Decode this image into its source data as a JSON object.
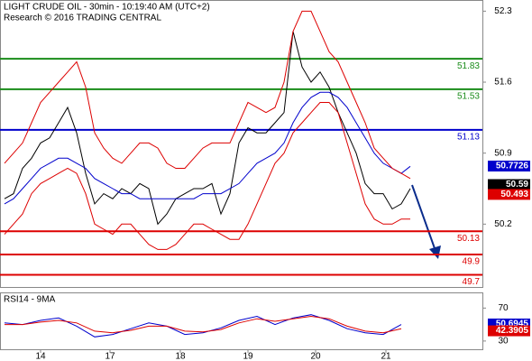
{
  "chart_data": [
    {
      "type": "line",
      "title": "LIGHT CRUDE OIL - 30min - 10:19:40 AM (UTC+2)",
      "subtitle": "Research © 2016 TRADING CENTRAL",
      "x": [
        0,
        2,
        4,
        6,
        8,
        10,
        12,
        14,
        16,
        18,
        20,
        22,
        24,
        26,
        28,
        30,
        32,
        34,
        36,
        38,
        40,
        42,
        44,
        46,
        48,
        50,
        52,
        54,
        56,
        58,
        60,
        62,
        64,
        66,
        68,
        70,
        72,
        74,
        76,
        78,
        80,
        82,
        84,
        86,
        88,
        90
      ],
      "xlim": [
        -1,
        106
      ],
      "xticks": [
        {
          "value": 8,
          "label": "14"
        },
        {
          "value": 23.4,
          "label": "17"
        },
        {
          "value": 39,
          "label": "18"
        },
        {
          "value": 54,
          "label": "19"
        },
        {
          "value": 69,
          "label": "20"
        },
        {
          "value": 84.6,
          "label": "21"
        }
      ],
      "ylim": [
        49.58,
        52.41
      ],
      "yticks": [
        52.3,
        51.6,
        50.9,
        50.2
      ],
      "series": [
        {
          "color": "#000000",
          "values": [
            50.45,
            50.5,
            50.75,
            50.85,
            51.0,
            51.05,
            51.2,
            51.35,
            51.1,
            50.7,
            50.4,
            50.5,
            50.45,
            50.55,
            50.5,
            50.6,
            50.55,
            50.2,
            50.3,
            50.45,
            50.5,
            50.55,
            50.55,
            50.6,
            50.3,
            50.5,
            51.0,
            51.15,
            51.1,
            51.1,
            51.2,
            51.3,
            52.1,
            51.75,
            51.6,
            51.7,
            51.55,
            51.3,
            51.1,
            50.9,
            50.6,
            50.5,
            50.5,
            50.35,
            50.4,
            50.55
          ]
        },
        {
          "color": "#0000cc",
          "values": [
            50.4,
            50.45,
            50.55,
            50.65,
            50.75,
            50.8,
            50.85,
            50.85,
            50.8,
            50.75,
            50.65,
            50.6,
            50.55,
            50.5,
            50.5,
            50.45,
            50.45,
            50.45,
            50.45,
            50.45,
            50.45,
            50.45,
            50.5,
            50.5,
            50.5,
            50.55,
            50.6,
            50.7,
            50.8,
            50.85,
            50.9,
            51.0,
            51.2,
            51.35,
            51.45,
            51.5,
            51.5,
            51.45,
            51.35,
            51.2,
            51.05,
            50.9,
            50.8,
            50.75,
            50.7,
            50.77
          ]
        },
        {
          "color": "#dd0000",
          "values": [
            50.8,
            50.9,
            51.0,
            51.2,
            51.4,
            51.5,
            51.6,
            51.7,
            51.8,
            51.55,
            51.1,
            50.95,
            50.85,
            50.8,
            50.9,
            51.0,
            51.0,
            50.95,
            50.8,
            50.75,
            50.75,
            50.85,
            50.95,
            51.0,
            51.0,
            51.0,
            51.2,
            51.4,
            51.35,
            51.3,
            51.35,
            51.6,
            52.1,
            52.3,
            52.3,
            52.1,
            51.9,
            51.8,
            51.6,
            51.4,
            51.2,
            50.95,
            50.85,
            50.75,
            50.7,
            50.65
          ]
        },
        {
          "color": "#dd0000",
          "values": [
            50.1,
            50.2,
            50.3,
            50.5,
            50.6,
            50.65,
            50.7,
            50.75,
            50.7,
            50.5,
            50.2,
            50.15,
            50.1,
            50.2,
            50.2,
            50.1,
            50.0,
            49.95,
            49.95,
            50.0,
            50.1,
            50.2,
            50.2,
            50.15,
            50.1,
            50.05,
            50.05,
            50.2,
            50.4,
            50.6,
            50.8,
            50.9,
            51.1,
            51.2,
            51.3,
            51.4,
            51.4,
            51.3,
            51.0,
            50.7,
            50.4,
            50.25,
            50.2,
            50.2,
            50.25,
            50.25
          ]
        }
      ],
      "levels": [
        {
          "value": 51.83,
          "color": "#1a8c1a"
        },
        {
          "value": 51.53,
          "color": "#1a8c1a"
        },
        {
          "value": 51.13,
          "color": "#0000cc"
        },
        {
          "value": 50.13,
          "color": "#dd0000"
        },
        {
          "value": 49.9,
          "color": "#dd0000"
        },
        {
          "value": 49.7,
          "color": "#dd0000"
        }
      ],
      "markers": [
        {
          "value": 50.7726,
          "color": "#0000cc"
        },
        {
          "value": 50.59,
          "color": "#000000"
        },
        {
          "value": 50.493,
          "color": "#dd0000"
        }
      ]
    },
    {
      "type": "line",
      "title": "RSI14 - 9MA",
      "x": [
        0,
        4,
        8,
        12,
        16,
        20,
        24,
        28,
        32,
        36,
        40,
        44,
        48,
        52,
        56,
        60,
        64,
        68,
        72,
        76,
        80,
        84,
        88
      ],
      "xlim": [
        -1,
        106
      ],
      "ylim": [
        20,
        89
      ],
      "yticks": [
        70,
        30
      ],
      "series": [
        {
          "color": "#0000cc",
          "values": [
            52,
            50,
            55,
            58,
            48,
            35,
            38,
            45,
            52,
            48,
            38,
            40,
            46,
            55,
            60,
            50,
            58,
            62,
            55,
            45,
            40,
            38,
            50
          ]
        },
        {
          "color": "#dd0000",
          "values": [
            50,
            50,
            53,
            55,
            52,
            42,
            40,
            43,
            48,
            48,
            42,
            41,
            44,
            52,
            57,
            54,
            57,
            60,
            57,
            48,
            42,
            40,
            45
          ]
        }
      ],
      "markers": [
        {
          "value": 50.6945,
          "color": "#0000cc"
        },
        {
          "value": 42.3905,
          "color": "#dd0000"
        }
      ]
    }
  ]
}
